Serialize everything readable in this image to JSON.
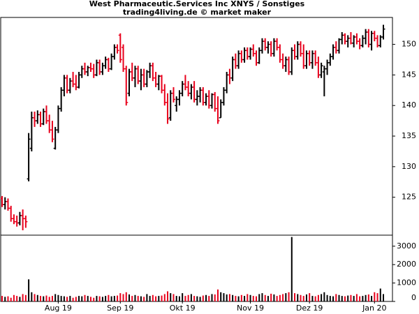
{
  "chart_data": {
    "type": "ohlc",
    "title": "West Pharmaceutic.Services Inc XNYS / Sonstiges",
    "subtitle": "trading4living.de © market maker",
    "up_color": "#000000",
    "down_color": "#e8001c",
    "ylim": [
      118.8,
      154.4
    ],
    "yticks": [
      125,
      130,
      135,
      140,
      145,
      150
    ],
    "categories": [
      null,
      null,
      null,
      null,
      null,
      null,
      null,
      null,
      null,
      null,
      null,
      null,
      null,
      null,
      null,
      null,
      null,
      null,
      null,
      "Aug 19",
      null,
      null,
      null,
      null,
      null,
      null,
      null,
      null,
      null,
      null,
      null,
      null,
      null,
      null,
      null,
      null,
      null,
      null,
      null,
      null,
      "Sep 19",
      null,
      null,
      null,
      null,
      null,
      null,
      null,
      null,
      null,
      null,
      null,
      null,
      null,
      null,
      null,
      null,
      null,
      null,
      null,
      null,
      "Okt 19",
      null,
      null,
      null,
      null,
      null,
      null,
      null,
      null,
      null,
      null,
      null,
      null,
      null,
      null,
      null,
      null,
      null,
      null,
      null,
      null,
      null,
      null,
      "Nov 19",
      null,
      null,
      null,
      null,
      null,
      null,
      null,
      null,
      null,
      null,
      null,
      null,
      null,
      null,
      null,
      null,
      null,
      null,
      null,
      "Dez 19",
      null,
      null,
      null,
      null,
      null,
      null,
      null,
      null,
      null,
      null,
      null,
      null,
      null,
      null,
      null,
      null,
      null,
      null,
      null,
      null,
      null,
      "Jan 20",
      null,
      null,
      null
    ],
    "open": [
      124.8,
      123.8,
      124.3,
      123.2,
      121.5,
      121.0,
      120.8,
      122.0,
      121.5,
      128,
      133,
      138,
      137.5,
      138.5,
      137,
      139,
      137.5,
      136,
      133,
      136,
      139.5,
      142.5,
      144.5,
      142.5,
      144,
      143.5,
      143,
      145,
      146,
      145.5,
      146.2,
      146,
      145,
      147,
      145.5,
      146.5,
      147.5,
      146,
      148,
      149.5,
      151.5,
      149.5,
      146,
      142,
      145.5,
      144.5,
      146,
      144,
      145,
      143.5,
      145.5,
      146.5,
      144.5,
      143.5,
      144.8,
      142.5,
      140.5,
      138,
      142,
      140,
      141,
      142,
      143.5,
      143,
      142,
      143,
      141,
      141.5,
      142.5,
      140.5,
      141.5,
      140,
      141.8,
      139.5,
      138,
      140.5,
      142.5,
      145,
      144.5,
      147.5,
      146.5,
      148.5,
      147.5,
      149,
      148,
      149.2,
      148.5,
      147,
      149,
      150.5,
      149.5,
      150,
      148.5,
      150.5,
      149.5,
      147.5,
      146.5,
      147.5,
      145.5,
      149,
      148,
      150,
      148.5,
      146.5,
      148.5,
      147,
      148.5,
      147,
      145,
      145.5,
      146,
      147,
      148,
      149.5,
      149,
      150.8,
      151.5,
      150.5,
      151,
      150.2,
      151.2,
      150.5,
      149.8,
      151,
      152,
      150,
      151.8,
      151,
      149.8,
      151.2
    ],
    "high": [
      125.2,
      125.0,
      124.8,
      123.6,
      122.2,
      122.0,
      122.6,
      123.0,
      122.0,
      135.5,
      139,
      139,
      139.2,
      139,
      139.5,
      140,
      138.5,
      137.5,
      136.5,
      140,
      143,
      145,
      145,
      144.5,
      145.5,
      145,
      145.5,
      146.5,
      147,
      146.5,
      147,
      146.8,
      147.5,
      147.5,
      147,
      148,
      147.8,
      148.5,
      150,
      150,
      151.8,
      150,
      146.5,
      146,
      147,
      146.5,
      146.5,
      146,
      146,
      145.8,
      147,
      147,
      145.5,
      145,
      145,
      143.5,
      142,
      142.5,
      143,
      141.5,
      142.5,
      144,
      145,
      144,
      143.5,
      144,
      142.5,
      143,
      143,
      142,
      142.5,
      142,
      142.2,
      141.5,
      141,
      143,
      145.5,
      146,
      148,
      148.5,
      149,
      149,
      149.5,
      149.5,
      149.5,
      150,
      149,
      149.5,
      151,
      151,
      150.5,
      150.5,
      151,
      151,
      150,
      148.5,
      148,
      148,
      149.5,
      150,
      150.5,
      150.5,
      150,
      149,
      149,
      149,
      149,
      148,
      147,
      146.5,
      147.5,
      148.5,
      150,
      150.5,
      151,
      152,
      151.8,
      151.5,
      152,
      151.5,
      151.8,
      151,
      151.5,
      152.5,
      152.5,
      152.2,
      152.2,
      151.5,
      151.5,
      153.2
    ],
    "low": [
      123.4,
      123.0,
      122.8,
      121.0,
      120.6,
      120.2,
      120.4,
      119.6,
      120.0,
      127.6,
      132.5,
      136.5,
      137,
      136.5,
      136.8,
      137,
      135.5,
      134,
      132.8,
      135.5,
      139,
      141.5,
      142,
      142,
      143,
      142.5,
      142.8,
      144.5,
      145,
      144.8,
      145.5,
      144.5,
      144.8,
      145,
      145,
      146,
      145.5,
      145.8,
      147.5,
      148.5,
      147,
      145.5,
      140,
      141.5,
      144,
      143,
      143.5,
      142.5,
      143,
      143,
      144.5,
      144,
      143,
      142.5,
      142,
      140,
      137,
      137.5,
      140.5,
      139,
      140,
      141.5,
      142.5,
      141.5,
      141,
      140.5,
      140,
      140.5,
      140,
      140,
      139.5,
      139.5,
      139,
      137,
      138,
      140,
      142,
      143.5,
      144,
      146,
      146,
      147,
      147,
      147.5,
      147.5,
      148,
      146.5,
      146.8,
      148.5,
      149,
      148.5,
      148,
      148,
      149,
      147,
      146,
      145.5,
      145,
      145,
      147.5,
      147.5,
      148,
      146,
      146,
      146.5,
      146,
      146.5,
      144.5,
      144.5,
      141.5,
      145,
      146.5,
      147.5,
      148.5,
      148.5,
      150,
      150,
      149.5,
      150,
      149.5,
      150,
      149.2,
      149.5,
      150,
      149.5,
      149,
      150.5,
      149.5,
      149.5,
      150.8
    ],
    "close": [
      123.8,
      124.3,
      123.2,
      121.5,
      121.0,
      120.8,
      122.0,
      121.5,
      121.0,
      134.5,
      138,
      137.5,
      138.5,
      137,
      139,
      137.5,
      136,
      134.5,
      136,
      139.5,
      142.5,
      144.5,
      142.5,
      144,
      143.5,
      143,
      145,
      146,
      145.5,
      146.2,
      146,
      145,
      147,
      145.5,
      146.5,
      147.5,
      146,
      148,
      149.5,
      149,
      147.5,
      146,
      140.5,
      145.5,
      144.5,
      146,
      144,
      145,
      143.5,
      145.5,
      146.5,
      144.5,
      143.5,
      144.8,
      142.5,
      140.5,
      137.8,
      142,
      141,
      141,
      142,
      143.5,
      143,
      142,
      143,
      141,
      141.5,
      142.5,
      140.5,
      141.5,
      140,
      141.8,
      139.5,
      137.5,
      140.5,
      142.5,
      145,
      144.5,
      147.5,
      146.5,
      148.5,
      147.5,
      149,
      148,
      149.2,
      148.5,
      147,
      149,
      150.5,
      149.5,
      150,
      148.5,
      150.5,
      149.5,
      147.5,
      146.5,
      147.5,
      145.5,
      149,
      148,
      150,
      148.5,
      146.5,
      148.5,
      147,
      148.5,
      147,
      145,
      146.5,
      146,
      147,
      148,
      149.5,
      149,
      150.8,
      151.5,
      150.5,
      151,
      150.2,
      151.2,
      150.5,
      149.8,
      151,
      152,
      150,
      151.8,
      151,
      149.8,
      151.2,
      152.5
    ],
    "volume": {
      "ylim": [
        0,
        3600
      ],
      "yticks": [
        0,
        1000,
        2000,
        3000
      ],
      "values": [
        300,
        250,
        280,
        200,
        350,
        300,
        250,
        400,
        350,
        1200,
        500,
        400,
        350,
        300,
        280,
        320,
        250,
        300,
        400,
        350,
        300,
        280,
        250,
        300,
        200,
        250,
        300,
        280,
        350,
        300,
        250,
        200,
        300,
        280,
        250,
        300,
        350,
        280,
        300,
        320,
        450,
        400,
        500,
        380,
        300,
        350,
        300,
        280,
        250,
        400,
        300,
        350,
        280,
        300,
        320,
        400,
        550,
        450,
        400,
        300,
        280,
        450,
        300,
        350,
        400,
        300,
        280,
        250,
        320,
        350,
        300,
        400,
        380,
        650,
        500,
        450,
        380,
        400,
        350,
        300,
        280,
        350,
        300,
        400,
        350,
        300,
        280,
        400,
        450,
        350,
        300,
        420,
        380,
        300,
        350,
        400,
        450,
        500,
        3500,
        450,
        400,
        350,
        300,
        380,
        450,
        300,
        280,
        350,
        400,
        500,
        350,
        300,
        280,
        400,
        350,
        300,
        280,
        320,
        350,
        300,
        400,
        280,
        300,
        350,
        380,
        300,
        500,
        450,
        700,
        400
      ]
    }
  }
}
